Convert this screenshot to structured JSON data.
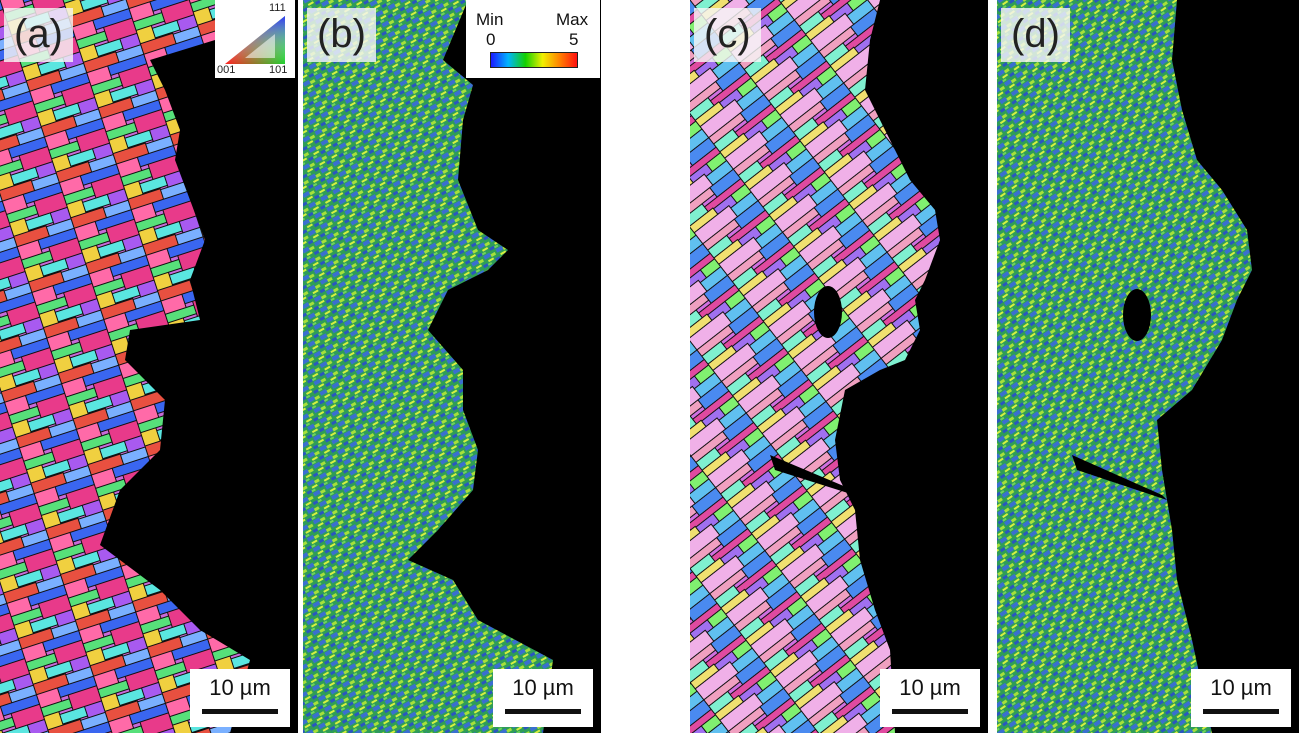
{
  "panels": [
    {
      "label": "(a)",
      "type": "ipf",
      "scale_bar": "10 µm"
    },
    {
      "label": "(b)",
      "type": "kam",
      "scale_bar": "10 µm"
    },
    {
      "label": "(c)",
      "type": "ipf",
      "scale_bar": "10 µm"
    },
    {
      "label": "(d)",
      "type": "kam",
      "scale_bar": "10 µm"
    }
  ],
  "ipf_legend": {
    "top": "111",
    "left": "001",
    "right": "101"
  },
  "colorbar": {
    "min_label": "Min",
    "max_label": "Max",
    "min_value": "0",
    "max_value": "5"
  },
  "colors": {
    "background_void": "#000000",
    "kam_base": "#2f9d57"
  }
}
